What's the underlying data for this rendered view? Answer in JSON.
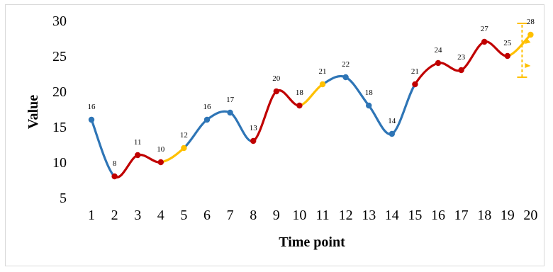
{
  "chart_data": {
    "type": "line",
    "xlabel": "Time point",
    "ylabel": "Value",
    "x": [
      1,
      2,
      3,
      4,
      5,
      6,
      7,
      8,
      9,
      10,
      11,
      12,
      13,
      14,
      15,
      16,
      17,
      18,
      19,
      20
    ],
    "values": [
      16,
      8,
      11,
      10,
      12,
      16,
      17,
      13,
      20,
      18,
      21,
      22,
      18,
      14,
      21,
      24,
      23,
      27,
      25,
      28
    ],
    "ylim": [
      5,
      30
    ],
    "yticks": [
      5,
      10,
      15,
      20,
      25,
      30
    ],
    "grid": false,
    "segments": [
      {
        "from": 1,
        "to": 2,
        "color": "#2E75B6"
      },
      {
        "from": 2,
        "to": 4,
        "color": "#C00000"
      },
      {
        "from": 4,
        "to": 5,
        "color": "#FFC000"
      },
      {
        "from": 5,
        "to": 8,
        "color": "#2E75B6"
      },
      {
        "from": 8,
        "to": 10,
        "color": "#C00000"
      },
      {
        "from": 10,
        "to": 11,
        "color": "#FFC000"
      },
      {
        "from": 11,
        "to": 14,
        "color": "#2E75B6"
      },
      {
        "from": 14,
        "to": 15,
        "color": "#2E75B6"
      },
      {
        "from": 15,
        "to": 19,
        "color": "#C00000"
      },
      {
        "from": 19,
        "to": 20,
        "color": "#FFC000"
      }
    ],
    "point_colors": [
      "#2E75B6",
      "#C00000",
      "#C00000",
      "#C00000",
      "#FFC000",
      "#2E75B6",
      "#2E75B6",
      "#C00000",
      "#C00000",
      "#C00000",
      "#FFC000",
      "#2E75B6",
      "#2E75B6",
      "#2E75B6",
      "#C00000",
      "#C00000",
      "#C00000",
      "#C00000",
      "#C00000",
      "#FFC000"
    ],
    "forecast_interval": {
      "x": 20,
      "low": 22,
      "high": 29.6,
      "color": "#FFC000"
    }
  }
}
